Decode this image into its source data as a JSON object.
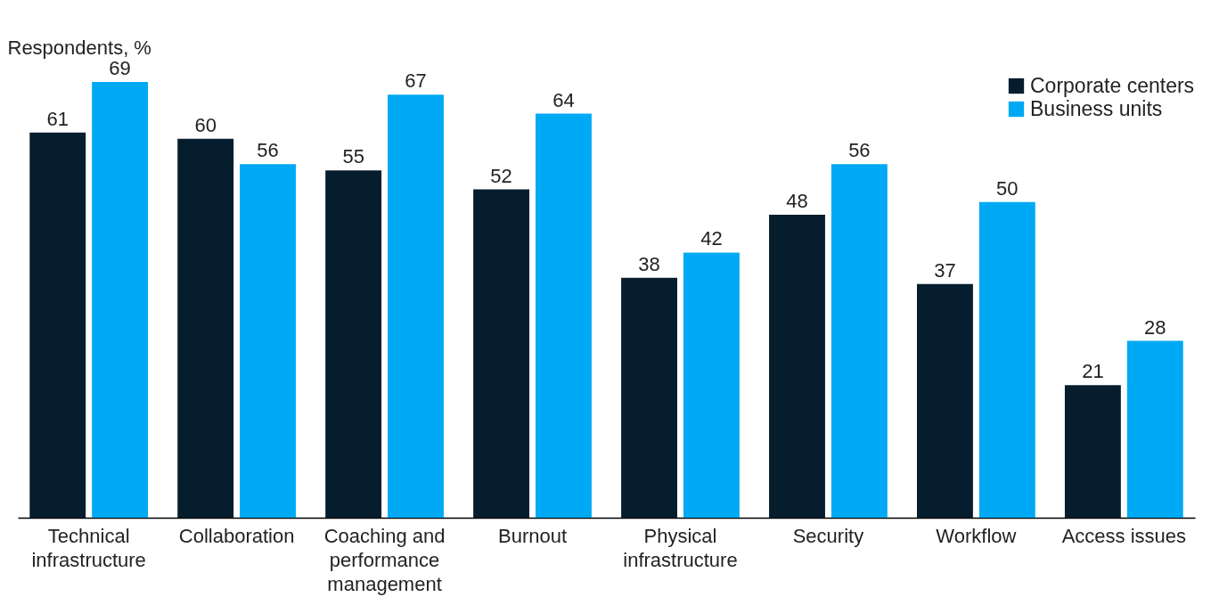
{
  "chart_data": {
    "type": "bar",
    "ylabel": "Respondents, %",
    "categories": [
      "Technical infrastructure",
      "Collaboration",
      "Coaching and performance management",
      "Burnout",
      "Physical infrastructure",
      "Security",
      "Workflow",
      "Access issues"
    ],
    "series": [
      {
        "name": "Corporate centers",
        "color": "#061d2e",
        "values": [
          61,
          60,
          55,
          52,
          38,
          48,
          37,
          21
        ]
      },
      {
        "name": "Business units",
        "color": "#00a9f4",
        "values": [
          69,
          56,
          67,
          64,
          42,
          56,
          50,
          28
        ]
      }
    ],
    "data_labels": true,
    "legend": "top right",
    "grid": false
  }
}
